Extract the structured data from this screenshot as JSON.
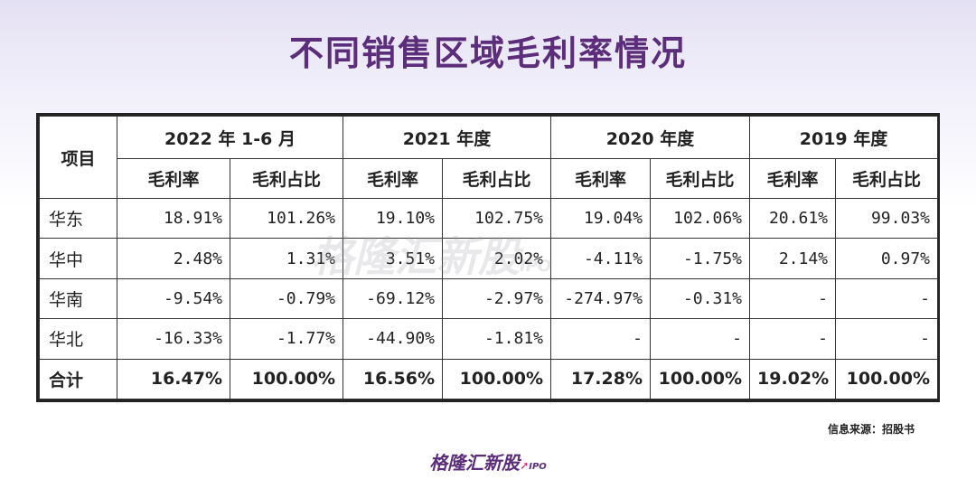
{
  "title": "不同销售区域毛利率情况",
  "table": {
    "item_header": "项目",
    "periods": [
      "2022 年 1-6 月",
      "2021 年度",
      "2020 年度",
      "2019 年度"
    ],
    "sub_headers": [
      "毛利率",
      "毛利占比"
    ],
    "rows": [
      {
        "label": "华东",
        "values": [
          "18.91%",
          "101.26%",
          "19.10%",
          "102.75%",
          "19.04%",
          "102.06%",
          "20.61%",
          "99.03%"
        ]
      },
      {
        "label": "华中",
        "values": [
          "2.48%",
          "1.31%",
          "3.51%",
          "2.02%",
          "-4.11%",
          "-1.75%",
          "2.14%",
          "0.97%"
        ]
      },
      {
        "label": "华南",
        "values": [
          "-9.54%",
          "-0.79%",
          "-69.12%",
          "-2.97%",
          "-274.97%",
          "-0.31%",
          "-",
          "-"
        ]
      },
      {
        "label": "华北",
        "values": [
          "-16.33%",
          "-1.77%",
          "-44.90%",
          "-1.81%",
          "-",
          "-",
          "-",
          "-"
        ]
      }
    ],
    "total": {
      "label": "合计",
      "values": [
        "16.47%",
        "100.00%",
        "16.56%",
        "100.00%",
        "17.28%",
        "100.00%",
        "19.02%",
        "100.00%"
      ]
    }
  },
  "watermark": {
    "text": "格隆汇新股",
    "suffix": "IPO"
  },
  "source": "信息来源：招股书",
  "logo": {
    "text": "格隆汇新股",
    "suffix": "IPO"
  },
  "colors": {
    "title": "#5b2d7a",
    "accent": "#e0206a"
  }
}
